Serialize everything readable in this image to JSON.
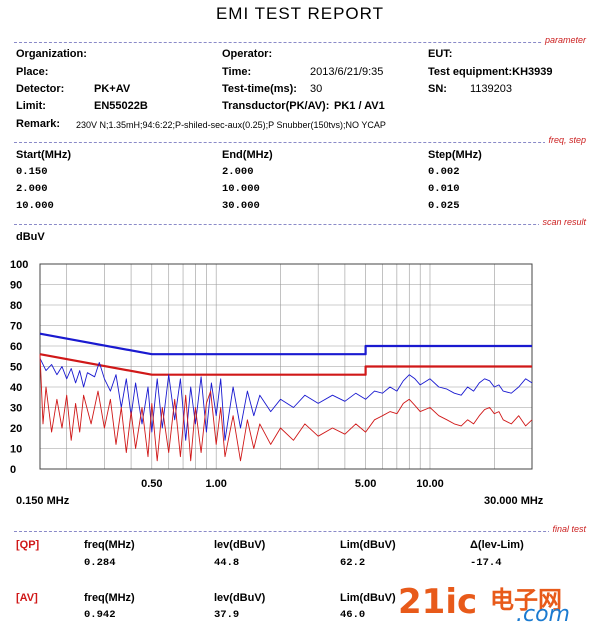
{
  "title": "EMI TEST REPORT",
  "sections": {
    "parameter": "parameter",
    "freq_step": "freq, step",
    "scan_result": "scan result",
    "final_test": "final test"
  },
  "params": {
    "organization_label": "Organization:",
    "organization_value": "",
    "operator_label": "Operator:",
    "operator_value": "",
    "eut_label": "EUT:",
    "eut_value": "",
    "place_label": "Place:",
    "place_value": "",
    "time_label": "Time:",
    "time_value": "2013/6/21/9:35",
    "test_equipment_label": "Test equipment:KH3939",
    "detector_label": "Detector:",
    "detector_value": "PK+AV",
    "test_time_label": "Test-time(ms):",
    "test_time_value": "30",
    "sn_label": "SN:",
    "sn_value": "1139203",
    "limit_label": "Limit:",
    "limit_value": "EN55022B",
    "transducer_label": "Transductor(PK/AV):",
    "transducer_value": "PK1  /  AV1",
    "remark_label": "Remark:",
    "remark_value": "230V N;1.35mH;94:6:22;P-shiled-sec-aux(0.25);P Snubber(150tvs);NO YCAP"
  },
  "freq_table": {
    "headers": [
      "Start(MHz)",
      "End(MHz)",
      "Step(MHz)"
    ],
    "rows": [
      [
        "0.150",
        "2.000",
        "0.002"
      ],
      [
        "2.000",
        "10.000",
        "0.010"
      ],
      [
        "10.000",
        "30.000",
        "0.025"
      ]
    ]
  },
  "final_test": {
    "rows": [
      {
        "tag": "[QP]",
        "freq_label": "freq(MHz)",
        "freq": "0.284",
        "lev_label": "lev(dBuV)",
        "lev": "44.8",
        "lim_label": "Lim(dBuV)",
        "lim": "62.2",
        "delta_label": "Δ(lev-Lim)",
        "delta": "-17.4"
      },
      {
        "tag": "[AV]",
        "freq_label": "freq(MHz)",
        "freq": "0.942",
        "lev_label": "lev(dBuV)",
        "lev": "37.9",
        "lim_label": "Lim(dBuV)",
        "lim": "46.0",
        "delta_label": "Δ(lev-Lim)",
        "delta": ""
      }
    ]
  },
  "watermark": {
    "brand": "21ic",
    "cn": "电子网",
    "domain": ".com"
  },
  "colors": {
    "qp": "#1a1ad0",
    "av": "#d01818",
    "grid": "#9a9a9a",
    "section_tag": "#cc2222"
  },
  "chart_data": {
    "type": "line",
    "ylabel": "dBuV",
    "xlabel_left": "0.150 MHz",
    "xlabel_right": "30.000 MHz",
    "x_scale": "log",
    "xlim": [
      0.15,
      30
    ],
    "ylim": [
      0,
      100
    ],
    "yticks": [
      0,
      10,
      20,
      30,
      40,
      50,
      60,
      70,
      80,
      90,
      100
    ],
    "xtick_labels": [
      {
        "x": 0.5,
        "label": "0.50"
      },
      {
        "x": 1.0,
        "label": "1.00"
      },
      {
        "x": 5.0,
        "label": "5.00"
      },
      {
        "x": 10.0,
        "label": "10.00"
      }
    ],
    "grid": true,
    "series": [
      {
        "kind": "limit-qp",
        "color": "#1a1ad0",
        "points": [
          [
            0.15,
            66
          ],
          [
            0.5,
            56
          ],
          [
            5.0,
            56
          ],
          [
            5.0,
            60
          ],
          [
            30.0,
            60
          ]
        ]
      },
      {
        "kind": "limit-av",
        "color": "#d01818",
        "points": [
          [
            0.15,
            56
          ],
          [
            0.5,
            46
          ],
          [
            5.0,
            46
          ],
          [
            5.0,
            50
          ],
          [
            30.0,
            50
          ]
        ]
      },
      {
        "kind": "scan-qp",
        "color": "#1a1ad0",
        "points": [
          [
            0.15,
            54
          ],
          [
            0.16,
            48
          ],
          [
            0.17,
            51
          ],
          [
            0.18,
            46
          ],
          [
            0.19,
            50
          ],
          [
            0.2,
            44
          ],
          [
            0.21,
            49
          ],
          [
            0.22,
            42
          ],
          [
            0.23,
            48
          ],
          [
            0.24,
            40
          ],
          [
            0.25,
            47
          ],
          [
            0.27,
            45
          ],
          [
            0.284,
            52
          ],
          [
            0.3,
            44
          ],
          [
            0.32,
            38
          ],
          [
            0.34,
            46
          ],
          [
            0.36,
            30
          ],
          [
            0.38,
            44
          ],
          [
            0.4,
            26
          ],
          [
            0.42,
            42
          ],
          [
            0.45,
            22
          ],
          [
            0.48,
            40
          ],
          [
            0.5,
            18
          ],
          [
            0.53,
            44
          ],
          [
            0.56,
            20
          ],
          [
            0.6,
            46
          ],
          [
            0.64,
            24
          ],
          [
            0.68,
            44
          ],
          [
            0.72,
            14
          ],
          [
            0.76,
            40
          ],
          [
            0.8,
            22
          ],
          [
            0.85,
            45
          ],
          [
            0.9,
            18
          ],
          [
            0.95,
            42
          ],
          [
            1.0,
            26
          ],
          [
            1.05,
            44
          ],
          [
            1.1,
            14
          ],
          [
            1.2,
            40
          ],
          [
            1.3,
            20
          ],
          [
            1.4,
            38
          ],
          [
            1.5,
            26
          ],
          [
            1.6,
            36
          ],
          [
            1.8,
            28
          ],
          [
            2.0,
            34
          ],
          [
            2.3,
            30
          ],
          [
            2.6,
            36
          ],
          [
            3.0,
            32
          ],
          [
            3.5,
            36
          ],
          [
            4.0,
            33
          ],
          [
            4.5,
            37
          ],
          [
            5.0,
            34
          ],
          [
            5.5,
            38
          ],
          [
            6.0,
            37
          ],
          [
            6.5,
            40
          ],
          [
            7.0,
            38
          ],
          [
            7.5,
            43
          ],
          [
            8.0,
            46
          ],
          [
            8.5,
            44
          ],
          [
            9.0,
            41
          ],
          [
            10.0,
            44
          ],
          [
            11.0,
            40
          ],
          [
            12.0,
            39
          ],
          [
            13.0,
            37
          ],
          [
            14.0,
            36
          ],
          [
            15.0,
            40
          ],
          [
            16.0,
            38
          ],
          [
            17.0,
            42
          ],
          [
            18.0,
            44
          ],
          [
            19.0,
            43
          ],
          [
            20.0,
            40
          ],
          [
            21.0,
            41
          ],
          [
            22.0,
            38
          ],
          [
            24.0,
            37
          ],
          [
            26.0,
            40
          ],
          [
            28.0,
            44
          ],
          [
            30.0,
            42
          ]
        ]
      },
      {
        "kind": "scan-av",
        "color": "#d01818",
        "points": [
          [
            0.15,
            56
          ],
          [
            0.155,
            22
          ],
          [
            0.16,
            40
          ],
          [
            0.17,
            18
          ],
          [
            0.18,
            34
          ],
          [
            0.19,
            20
          ],
          [
            0.2,
            36
          ],
          [
            0.21,
            14
          ],
          [
            0.22,
            32
          ],
          [
            0.23,
            18
          ],
          [
            0.24,
            36
          ],
          [
            0.26,
            22
          ],
          [
            0.28,
            38
          ],
          [
            0.3,
            20
          ],
          [
            0.32,
            34
          ],
          [
            0.34,
            12
          ],
          [
            0.36,
            30
          ],
          [
            0.38,
            8
          ],
          [
            0.4,
            28
          ],
          [
            0.42,
            10
          ],
          [
            0.45,
            30
          ],
          [
            0.48,
            6
          ],
          [
            0.5,
            32
          ],
          [
            0.53,
            4
          ],
          [
            0.56,
            30
          ],
          [
            0.6,
            8
          ],
          [
            0.64,
            34
          ],
          [
            0.68,
            6
          ],
          [
            0.72,
            36
          ],
          [
            0.76,
            4
          ],
          [
            0.8,
            30
          ],
          [
            0.85,
            8
          ],
          [
            0.9,
            32
          ],
          [
            0.942,
            38
          ],
          [
            1.0,
            12
          ],
          [
            1.05,
            30
          ],
          [
            1.1,
            6
          ],
          [
            1.2,
            26
          ],
          [
            1.3,
            4
          ],
          [
            1.4,
            24
          ],
          [
            1.5,
            10
          ],
          [
            1.6,
            22
          ],
          [
            1.8,
            12
          ],
          [
            2.0,
            20
          ],
          [
            2.3,
            14
          ],
          [
            2.6,
            22
          ],
          [
            3.0,
            16
          ],
          [
            3.5,
            20
          ],
          [
            4.0,
            17
          ],
          [
            4.5,
            22
          ],
          [
            5.0,
            18
          ],
          [
            5.5,
            24
          ],
          [
            6.0,
            26
          ],
          [
            6.5,
            28
          ],
          [
            7.0,
            27
          ],
          [
            7.5,
            32
          ],
          [
            8.0,
            34
          ],
          [
            8.5,
            31
          ],
          [
            9.0,
            28
          ],
          [
            10.0,
            30
          ],
          [
            11.0,
            26
          ],
          [
            12.0,
            24
          ],
          [
            13.0,
            22
          ],
          [
            14.0,
            21
          ],
          [
            15.0,
            24
          ],
          [
            16.0,
            22
          ],
          [
            17.0,
            26
          ],
          [
            18.0,
            29
          ],
          [
            19.0,
            30
          ],
          [
            20.0,
            27
          ],
          [
            21.0,
            28
          ],
          [
            22.0,
            24
          ],
          [
            24.0,
            22
          ],
          [
            26.0,
            26
          ],
          [
            28.0,
            21
          ],
          [
            30.0,
            24
          ]
        ]
      }
    ]
  }
}
